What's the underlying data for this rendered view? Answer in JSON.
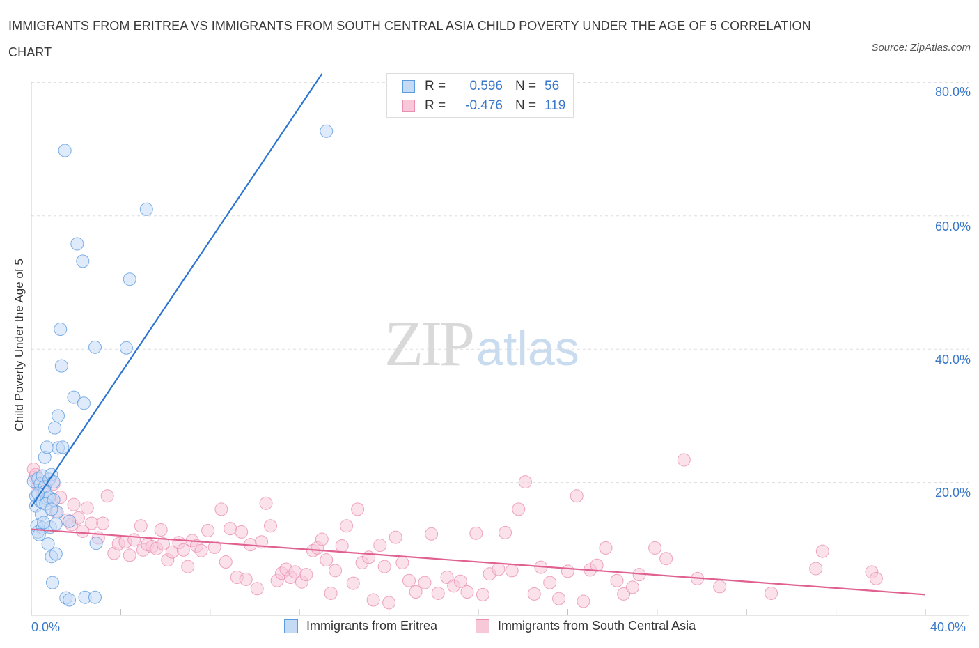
{
  "title": "IMMIGRANTS FROM ERITREA VS IMMIGRANTS FROM SOUTH CENTRAL ASIA CHILD POVERTY UNDER THE AGE OF 5 CORRELATION CHART",
  "source": "Source: ZipAtlas.com",
  "watermark": {
    "zip": "ZIP",
    "atlas": "atlas"
  },
  "colors": {
    "eritrea": "#5b9be0",
    "eritrea_fill": "#c5dbf5",
    "eritrea_line": "#2b74d0",
    "sca": "#ea8fb0",
    "sca_fill": "#f7c9d8",
    "sca_line": "#e0608f",
    "grid": "#dddddd",
    "tick_text": "#3a78c9"
  },
  "legend": {
    "rows": [
      {
        "r_label": "R =",
        "r_value": "0.596",
        "n_label": "N =",
        "n_value": "56"
      },
      {
        "r_label": "R =",
        "r_value": "-0.476",
        "n_label": "N =",
        "n_value": "119"
      }
    ]
  },
  "bottom_legend": {
    "eritrea": "Immigrants from Eritrea",
    "sca": "Immigrants from South Central Asia"
  },
  "chart_data": {
    "type": "scatter",
    "title": "IMMIGRANTS FROM ERITREA VS IMMIGRANTS FROM SOUTH CENTRAL ASIA CHILD POVERTY UNDER THE AGE OF 5 CORRELATION CHART",
    "xlabel": "",
    "ylabel": "Child Poverty Under the Age of 5",
    "xlim": [
      0,
      40
    ],
    "ylim": [
      0,
      80
    ],
    "x_tick_labels": [
      "0.0%",
      "40.0%"
    ],
    "y_tick_labels": [
      "20.0%",
      "40.0%",
      "60.0%",
      "80.0%"
    ],
    "y_ticks": [
      20,
      40,
      60,
      80
    ],
    "grid": true,
    "legend_position": "top-center",
    "series": [
      {
        "name": "Immigrants from Eritrea",
        "R": 0.596,
        "N": 56,
        "trend": [
          [
            0.0,
            16.4
          ],
          [
            13.0,
            81.3
          ]
        ],
        "points": [
          [
            0.1,
            20.2
          ],
          [
            0.2,
            18.0
          ],
          [
            0.2,
            16.5
          ],
          [
            0.25,
            13.5
          ],
          [
            0.3,
            12.6
          ],
          [
            0.3,
            20.6
          ],
          [
            0.4,
            17.2
          ],
          [
            0.4,
            19.8
          ],
          [
            0.45,
            15.2
          ],
          [
            0.5,
            17.0
          ],
          [
            0.5,
            21.0
          ],
          [
            0.5,
            13.2
          ],
          [
            0.6,
            19.4
          ],
          [
            0.6,
            18.6
          ],
          [
            0.6,
            23.8
          ],
          [
            0.7,
            17.6
          ],
          [
            0.7,
            25.3
          ],
          [
            0.75,
            10.8
          ],
          [
            0.8,
            20.5
          ],
          [
            0.8,
            17.8
          ],
          [
            0.85,
            13.3
          ],
          [
            0.9,
            8.9
          ],
          [
            0.9,
            21.2
          ],
          [
            0.95,
            5.0
          ],
          [
            1.0,
            20.1
          ],
          [
            1.05,
            28.2
          ],
          [
            1.1,
            9.3
          ],
          [
            1.1,
            13.8
          ],
          [
            1.15,
            15.6
          ],
          [
            1.2,
            30.0
          ],
          [
            1.2,
            25.2
          ],
          [
            1.3,
            43.0
          ],
          [
            1.35,
            37.5
          ],
          [
            1.4,
            25.3
          ],
          [
            1.5,
            69.8
          ],
          [
            1.55,
            2.7
          ],
          [
            1.7,
            2.4
          ],
          [
            1.7,
            14.2
          ],
          [
            1.9,
            32.8
          ],
          [
            2.05,
            55.8
          ],
          [
            2.3,
            53.2
          ],
          [
            2.35,
            31.9
          ],
          [
            2.4,
            2.8
          ],
          [
            2.85,
            2.8
          ],
          [
            2.85,
            40.3
          ],
          [
            2.9,
            10.9
          ],
          [
            4.25,
            40.2
          ],
          [
            4.4,
            50.5
          ],
          [
            5.15,
            61.0
          ],
          [
            13.2,
            72.7
          ],
          [
            0.35,
            12.2
          ],
          [
            0.55,
            14.0
          ],
          [
            0.65,
            16.8
          ],
          [
            0.3,
            18.3
          ],
          [
            1.0,
            17.4
          ],
          [
            0.9,
            16.0
          ]
        ]
      },
      {
        "name": "Immigrants from South Central Asia",
        "R": -0.476,
        "N": 119,
        "trend": [
          [
            0.0,
            13.0
          ],
          [
            40.0,
            3.2
          ]
        ],
        "points": [
          [
            0.1,
            22.0
          ],
          [
            0.15,
            20.8
          ],
          [
            0.2,
            21.2
          ],
          [
            0.3,
            19.5
          ],
          [
            0.5,
            18.6
          ],
          [
            0.7,
            20.0
          ],
          [
            0.9,
            17.3
          ],
          [
            1.0,
            19.8
          ],
          [
            1.1,
            15.6
          ],
          [
            1.3,
            17.8
          ],
          [
            1.6,
            14.4
          ],
          [
            1.8,
            13.7
          ],
          [
            1.9,
            16.7
          ],
          [
            2.1,
            14.7
          ],
          [
            2.3,
            12.7
          ],
          [
            2.5,
            16.2
          ],
          [
            2.7,
            13.9
          ],
          [
            3.0,
            11.7
          ],
          [
            3.2,
            13.9
          ],
          [
            3.4,
            18.0
          ],
          [
            3.7,
            9.4
          ],
          [
            3.9,
            10.8
          ],
          [
            4.2,
            11.1
          ],
          [
            4.4,
            9.1
          ],
          [
            4.6,
            11.4
          ],
          [
            4.9,
            13.5
          ],
          [
            5.0,
            9.9
          ],
          [
            5.2,
            10.7
          ],
          [
            5.4,
            10.4
          ],
          [
            5.6,
            10.1
          ],
          [
            5.8,
            12.9
          ],
          [
            5.9,
            10.8
          ],
          [
            6.1,
            8.4
          ],
          [
            6.3,
            9.6
          ],
          [
            6.6,
            11.0
          ],
          [
            6.8,
            9.9
          ],
          [
            7.0,
            7.4
          ],
          [
            7.2,
            11.3
          ],
          [
            7.4,
            10.5
          ],
          [
            7.6,
            9.8
          ],
          [
            7.9,
            12.8
          ],
          [
            8.2,
            10.3
          ],
          [
            8.5,
            16.0
          ],
          [
            8.7,
            8.1
          ],
          [
            8.9,
            13.1
          ],
          [
            9.2,
            5.8
          ],
          [
            9.4,
            12.6
          ],
          [
            9.6,
            5.5
          ],
          [
            9.8,
            10.7
          ],
          [
            10.1,
            4.1
          ],
          [
            10.3,
            11.1
          ],
          [
            10.5,
            16.9
          ],
          [
            10.7,
            13.5
          ],
          [
            11.0,
            5.3
          ],
          [
            11.2,
            6.4
          ],
          [
            11.4,
            7.0
          ],
          [
            11.6,
            5.8
          ],
          [
            11.8,
            6.6
          ],
          [
            12.1,
            5.1
          ],
          [
            12.3,
            6.2
          ],
          [
            12.6,
            9.8
          ],
          [
            12.8,
            10.2
          ],
          [
            13.0,
            11.5
          ],
          [
            13.2,
            8.4
          ],
          [
            13.4,
            3.4
          ],
          [
            13.6,
            6.8
          ],
          [
            13.9,
            10.5
          ],
          [
            14.1,
            13.5
          ],
          [
            14.4,
            4.9
          ],
          [
            14.6,
            16.0
          ],
          [
            14.8,
            8.0
          ],
          [
            15.1,
            8.8
          ],
          [
            15.3,
            2.4
          ],
          [
            15.6,
            10.6
          ],
          [
            15.8,
            7.4
          ],
          [
            16.0,
            2.0
          ],
          [
            16.3,
            11.8
          ],
          [
            16.6,
            8.0
          ],
          [
            16.9,
            5.3
          ],
          [
            17.2,
            3.6
          ],
          [
            17.6,
            5.0
          ],
          [
            17.9,
            12.3
          ],
          [
            18.2,
            3.4
          ],
          [
            18.6,
            5.8
          ],
          [
            18.9,
            4.5
          ],
          [
            19.2,
            5.2
          ],
          [
            19.5,
            3.6
          ],
          [
            19.9,
            12.4
          ],
          [
            20.2,
            3.2
          ],
          [
            20.5,
            6.3
          ],
          [
            20.9,
            7.0
          ],
          [
            21.2,
            12.5
          ],
          [
            21.5,
            6.8
          ],
          [
            21.8,
            16.0
          ],
          [
            22.1,
            20.1
          ],
          [
            22.5,
            3.3
          ],
          [
            22.8,
            7.3
          ],
          [
            23.2,
            5.0
          ],
          [
            23.6,
            2.6
          ],
          [
            24.0,
            6.7
          ],
          [
            24.4,
            18.0
          ],
          [
            24.7,
            2.2
          ],
          [
            25.0,
            6.9
          ],
          [
            25.3,
            7.6
          ],
          [
            25.7,
            10.2
          ],
          [
            26.2,
            5.3
          ],
          [
            26.5,
            3.3
          ],
          [
            26.9,
            4.3
          ],
          [
            27.2,
            6.2
          ],
          [
            27.9,
            10.2
          ],
          [
            28.4,
            8.6
          ],
          [
            29.2,
            23.4
          ],
          [
            29.8,
            5.6
          ],
          [
            30.8,
            4.4
          ],
          [
            33.1,
            3.4
          ],
          [
            35.1,
            7.1
          ],
          [
            35.4,
            9.7
          ],
          [
            37.6,
            6.6
          ],
          [
            37.8,
            5.6
          ]
        ]
      }
    ]
  },
  "axes": {
    "ylabel": "Child Poverty Under the Age of 5",
    "x_left": "0.0%",
    "x_right": "40.0%",
    "y_ticks": [
      "20.0%",
      "40.0%",
      "60.0%",
      "80.0%"
    ]
  }
}
